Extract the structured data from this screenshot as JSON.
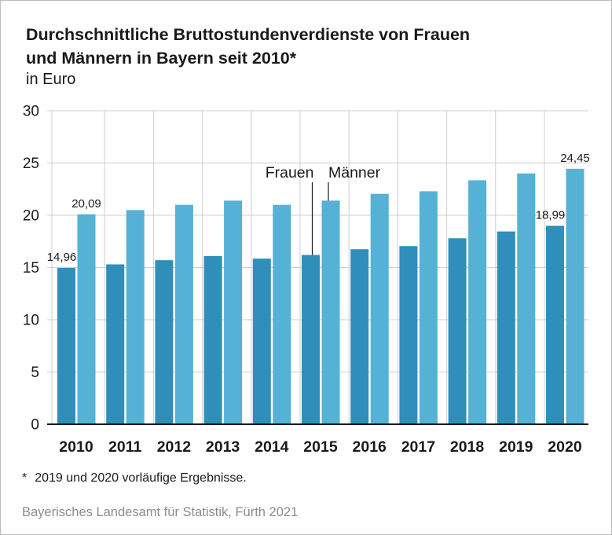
{
  "title_line1": "Durchschnittliche Bruttostundenverdienste von Frauen",
  "title_line2": "und Männern in Bayern seit 2010*",
  "subtitle": "in Euro",
  "footnote_marker": "*",
  "footnote_text": "2019 und 2020 vorläufige Ergebnisse.",
  "source": "Bayerisches Landesamt für Statistik, Fürth 2021",
  "colors": {
    "frauen": "#2f8fba",
    "maenner": "#56b1d6",
    "grid": "#cfcfcf",
    "axis": "#1a1a1a"
  },
  "chart_data": {
    "type": "bar",
    "title": "Durchschnittliche Bruttostundenverdienste von Frauen und Männern in Bayern seit 2010*",
    "subtitle": "in Euro",
    "categories": [
      "2010",
      "2011",
      "2012",
      "2013",
      "2014",
      "2015",
      "2016",
      "2017",
      "2018",
      "2019",
      "2020"
    ],
    "series": [
      {
        "name": "Frauen",
        "values": [
          14.96,
          15.3,
          15.7,
          16.1,
          15.85,
          16.2,
          16.75,
          17.05,
          17.8,
          18.45,
          18.99
        ]
      },
      {
        "name": "Männer",
        "values": [
          20.09,
          20.5,
          21.0,
          21.4,
          21.0,
          21.4,
          22.05,
          22.3,
          23.35,
          24.0,
          24.45
        ]
      }
    ],
    "data_labels": [
      {
        "series": "Frauen",
        "category": "2010",
        "text": "14,96"
      },
      {
        "series": "Männer",
        "category": "2010",
        "text": "20,09"
      },
      {
        "series": "Frauen",
        "category": "2020",
        "text": "18,99"
      },
      {
        "series": "Männer",
        "category": "2020",
        "text": "24,45"
      }
    ],
    "annotation_category": "2015",
    "yticks": [
      "0",
      "5",
      "10",
      "15",
      "20",
      "25",
      "30"
    ],
    "ylim": [
      0,
      30
    ],
    "grid": true,
    "legend": "inline annotations at 2015"
  }
}
